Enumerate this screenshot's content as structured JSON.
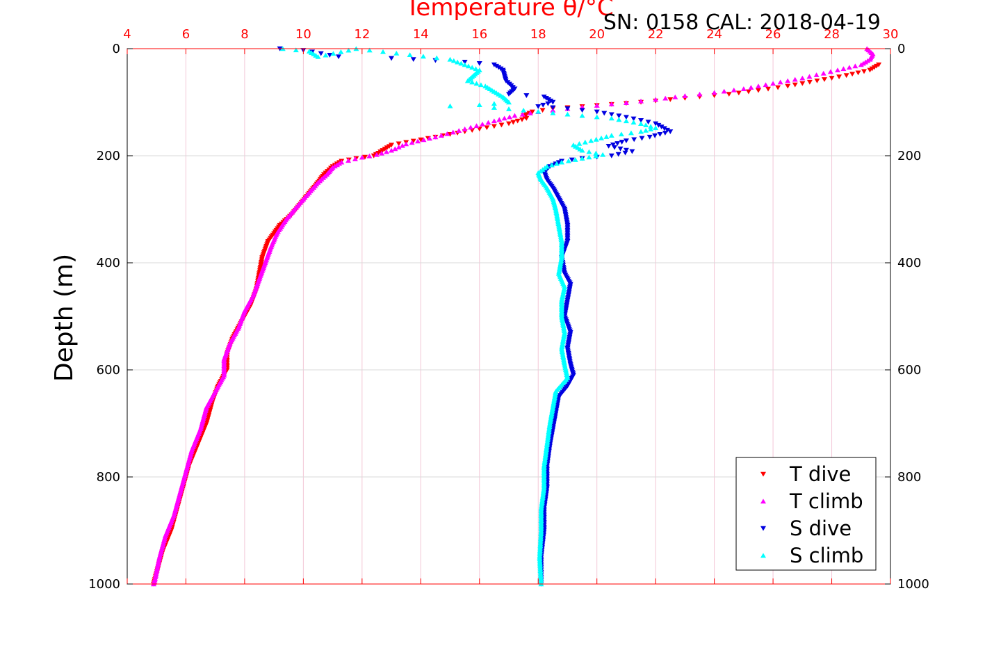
{
  "chart_data": {
    "type": "scatter",
    "title": "Temperature θ/°C",
    "annotation": "SN: 0158  CAL: 2018-04-19",
    "ylabel": "Depth (m)",
    "xlim": [
      4,
      30
    ],
    "ylim": [
      1000,
      0
    ],
    "x_ticks": [
      "4",
      "6",
      "8",
      "10",
      "12",
      "14",
      "16",
      "18",
      "20",
      "22",
      "24",
      "26",
      "28",
      "30"
    ],
    "y_ticks": [
      "0",
      "200",
      "400",
      "600",
      "800",
      "1000"
    ],
    "grid": true,
    "legend_position": "bottom-right",
    "colors": {
      "title": "#ff0000",
      "top_axis": "#ff0000",
      "grid_x": "#f3c6d6",
      "grid_y": "#d9d9d9",
      "axis": "#000000"
    },
    "series": [
      {
        "name": "T dive",
        "color": "#ff0000",
        "marker": "triangle-down",
        "points": [
          [
            29.6,
            30
          ],
          [
            29.3,
            40
          ],
          [
            28.5,
            50
          ],
          [
            27.5,
            60
          ],
          [
            26.5,
            70
          ],
          [
            25.5,
            78
          ],
          [
            24.5,
            85
          ],
          [
            23.5,
            90
          ],
          [
            22.5,
            95
          ],
          [
            21.5,
            100
          ],
          [
            20.5,
            104
          ],
          [
            19.5,
            108
          ],
          [
            18.5,
            112
          ],
          [
            17.8,
            118
          ],
          [
            17.5,
            125
          ],
          [
            17.6,
            130
          ],
          [
            17.0,
            140
          ],
          [
            16.0,
            150
          ],
          [
            15.0,
            160
          ],
          [
            14.0,
            170
          ],
          [
            13.0,
            180
          ],
          [
            12.7,
            190
          ],
          [
            12.4,
            200
          ],
          [
            11.8,
            205
          ],
          [
            11.3,
            210
          ],
          [
            11.0,
            220
          ],
          [
            10.7,
            235
          ],
          [
            10.5,
            250
          ],
          [
            10.2,
            270
          ],
          [
            9.9,
            290
          ],
          [
            9.6,
            310
          ],
          [
            9.2,
            330
          ],
          [
            8.8,
            360
          ],
          [
            8.6,
            390
          ],
          [
            8.5,
            420
          ],
          [
            8.4,
            450
          ],
          [
            8.2,
            480
          ],
          [
            7.9,
            510
          ],
          [
            7.6,
            540
          ],
          [
            7.4,
            570
          ],
          [
            7.4,
            600
          ],
          [
            7.1,
            630
          ],
          [
            6.9,
            660
          ],
          [
            6.7,
            700
          ],
          [
            6.4,
            740
          ],
          [
            6.1,
            780
          ],
          [
            5.9,
            820
          ],
          [
            5.7,
            860
          ],
          [
            5.5,
            900
          ],
          [
            5.2,
            940
          ],
          [
            5.0,
            980
          ],
          [
            4.9,
            1000
          ]
        ]
      },
      {
        "name": "T climb",
        "color": "#ff00ff",
        "marker": "triangle-up",
        "points": [
          [
            29.2,
            0
          ],
          [
            29.4,
            10
          ],
          [
            29.3,
            20
          ],
          [
            29.0,
            30
          ],
          [
            28.2,
            40
          ],
          [
            27.0,
            55
          ],
          [
            26.0,
            65
          ],
          [
            25.0,
            75
          ],
          [
            24.0,
            82
          ],
          [
            23.0,
            88
          ],
          [
            22.0,
            95
          ],
          [
            21.0,
            101
          ],
          [
            20.0,
            106
          ],
          [
            19.0,
            112
          ],
          [
            18.0,
            118
          ],
          [
            17.2,
            125
          ],
          [
            16.5,
            135
          ],
          [
            15.5,
            150
          ],
          [
            14.5,
            165
          ],
          [
            13.5,
            178
          ],
          [
            13.0,
            190
          ],
          [
            12.5,
            198
          ],
          [
            12.0,
            203
          ],
          [
            11.3,
            212
          ],
          [
            11.0,
            222
          ],
          [
            10.8,
            235
          ],
          [
            10.5,
            250
          ],
          [
            10.1,
            275
          ],
          [
            9.7,
            300
          ],
          [
            9.4,
            320
          ],
          [
            9.1,
            345
          ],
          [
            8.9,
            370
          ],
          [
            8.7,
            400
          ],
          [
            8.5,
            430
          ],
          [
            8.3,
            460
          ],
          [
            8.0,
            490
          ],
          [
            7.8,
            520
          ],
          [
            7.5,
            550
          ],
          [
            7.3,
            580
          ],
          [
            7.3,
            610
          ],
          [
            7.0,
            640
          ],
          [
            6.7,
            670
          ],
          [
            6.5,
            710
          ],
          [
            6.2,
            750
          ],
          [
            6.0,
            790
          ],
          [
            5.8,
            830
          ],
          [
            5.6,
            870
          ],
          [
            5.3,
            910
          ],
          [
            5.1,
            950
          ],
          [
            4.95,
            990
          ],
          [
            4.9,
            1000
          ]
        ]
      },
      {
        "name": "S dive",
        "color": "#0000e0",
        "marker": "triangle-down",
        "points": [
          [
            9.2,
            0
          ],
          [
            10.0,
            3
          ],
          [
            11.2,
            15
          ],
          [
            13.0,
            18
          ],
          [
            14.5,
            22
          ],
          [
            15.5,
            25
          ],
          [
            16.5,
            30
          ],
          [
            16.8,
            40
          ],
          [
            16.9,
            60
          ],
          [
            17.2,
            75
          ],
          [
            17.0,
            85
          ],
          [
            18.2,
            90
          ],
          [
            18.5,
            100
          ],
          [
            18.0,
            108
          ],
          [
            19.0,
            112
          ],
          [
            20.0,
            118
          ],
          [
            21.0,
            128
          ],
          [
            22.0,
            140
          ],
          [
            22.5,
            155
          ],
          [
            21.8,
            165
          ],
          [
            21.0,
            172
          ],
          [
            20.4,
            182
          ],
          [
            21.2,
            192
          ],
          [
            20.5,
            200
          ],
          [
            19.5,
            205
          ],
          [
            18.8,
            210
          ],
          [
            18.4,
            220
          ],
          [
            18.2,
            230
          ],
          [
            18.3,
            245
          ],
          [
            18.5,
            260
          ],
          [
            18.7,
            280
          ],
          [
            18.9,
            300
          ],
          [
            19.0,
            330
          ],
          [
            19.0,
            360
          ],
          [
            18.8,
            390
          ],
          [
            18.9,
            420
          ],
          [
            19.1,
            440
          ],
          [
            19.0,
            470
          ],
          [
            18.9,
            500
          ],
          [
            19.1,
            530
          ],
          [
            19.0,
            560
          ],
          [
            19.1,
            590
          ],
          [
            19.2,
            610
          ],
          [
            19.0,
            630
          ],
          [
            18.7,
            650
          ],
          [
            18.6,
            680
          ],
          [
            18.5,
            710
          ],
          [
            18.4,
            740
          ],
          [
            18.3,
            780
          ],
          [
            18.3,
            820
          ],
          [
            18.2,
            860
          ],
          [
            18.2,
            900
          ],
          [
            18.1,
            950
          ],
          [
            18.1,
            1000
          ]
        ]
      },
      {
        "name": "S climb",
        "color": "#00ffff",
        "marker": "triangle-up",
        "points": [
          [
            9.3,
            0
          ],
          [
            10.2,
            5
          ],
          [
            10.5,
            15
          ],
          [
            11.8,
            0
          ],
          [
            15.0,
            20
          ],
          [
            15.5,
            30
          ],
          [
            16.0,
            40
          ],
          [
            15.8,
            50
          ],
          [
            15.6,
            60
          ],
          [
            16.2,
            70
          ],
          [
            16.5,
            80
          ],
          [
            16.8,
            90
          ],
          [
            17.0,
            100
          ],
          [
            16.0,
            105
          ],
          [
            15.0,
            107
          ],
          [
            16.5,
            110
          ],
          [
            17.5,
            115
          ],
          [
            18.5,
            120
          ],
          [
            19.5,
            125
          ],
          [
            20.5,
            130
          ],
          [
            21.0,
            135
          ],
          [
            21.5,
            140
          ],
          [
            22.0,
            148
          ],
          [
            21.5,
            155
          ],
          [
            20.5,
            162
          ],
          [
            19.8,
            172
          ],
          [
            19.2,
            180
          ],
          [
            19.5,
            190
          ],
          [
            20.2,
            198
          ],
          [
            19.5,
            205
          ],
          [
            18.8,
            212
          ],
          [
            18.3,
            220
          ],
          [
            18.0,
            232
          ],
          [
            18.1,
            245
          ],
          [
            18.3,
            260
          ],
          [
            18.5,
            280
          ],
          [
            18.6,
            300
          ],
          [
            18.7,
            330
          ],
          [
            18.8,
            360
          ],
          [
            18.8,
            390
          ],
          [
            18.7,
            420
          ],
          [
            18.9,
            445
          ],
          [
            18.8,
            470
          ],
          [
            18.8,
            500
          ],
          [
            18.9,
            530
          ],
          [
            18.8,
            560
          ],
          [
            18.9,
            590
          ],
          [
            19.0,
            615
          ],
          [
            18.6,
            640
          ],
          [
            18.5,
            670
          ],
          [
            18.4,
            700
          ],
          [
            18.3,
            740
          ],
          [
            18.2,
            780
          ],
          [
            18.2,
            820
          ],
          [
            18.1,
            860
          ],
          [
            18.1,
            900
          ],
          [
            18.05,
            950
          ],
          [
            18.1,
            1000
          ]
        ]
      }
    ]
  }
}
